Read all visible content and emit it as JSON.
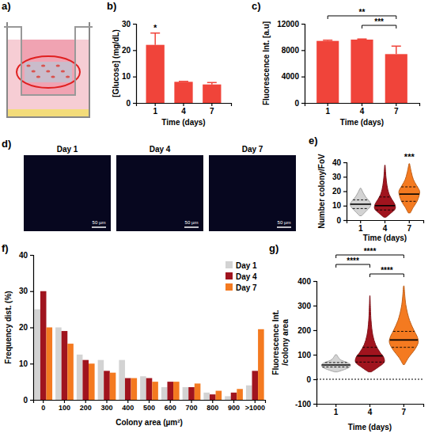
{
  "chart_data": [
    {
      "type": "schematic",
      "panel": "a)"
    },
    {
      "type": "bar",
      "panel": "b)",
      "categories": [
        "1",
        "4",
        "7"
      ],
      "values": [
        22,
        8,
        7
      ],
      "errors": [
        4.5,
        0.2,
        0.7
      ],
      "color": "#f0443a",
      "ylim": [
        0,
        30
      ],
      "yticks": [
        0,
        10,
        20,
        30
      ],
      "x_label": "Time (days)",
      "y_label": "[Glucose] (mg/dL)",
      "annotations": [
        {
          "category": "1",
          "label": "*"
        }
      ]
    },
    {
      "type": "bar",
      "panel": "c)",
      "categories": [
        "1",
        "4",
        "7"
      ],
      "values": [
        9400,
        9600,
        7400
      ],
      "errors": [
        100,
        100,
        1200
      ],
      "color": "#f0443a",
      "ylim": [
        0,
        12000
      ],
      "yticks": [
        0,
        4000,
        8000,
        12000
      ],
      "x_label": "Time (days)",
      "y_label": "Fluorescence Int. [a.u]",
      "comparisons": [
        {
          "from": "1",
          "to": "7",
          "label": "**"
        },
        {
          "from": "4",
          "to": "7",
          "label": "***"
        }
      ]
    },
    {
      "type": "image",
      "panel": "d)",
      "titles": [
        "Day 1",
        "Day 4",
        "Day 7"
      ],
      "scale_bar": "50 µm"
    },
    {
      "type": "violin",
      "panel": "e)",
      "categories": [
        "1",
        "4",
        "7"
      ],
      "colors": [
        "#d3d3d3",
        "#a0141e",
        "#f47a20"
      ],
      "violins": [
        {
          "y": [
            3,
            6,
            9,
            11,
            13,
            16,
            19,
            22
          ],
          "density": [
            0.1,
            0.5,
            0.9,
            1,
            0.85,
            0.5,
            0.25,
            0.05
          ],
          "quartiles": [
            8,
            11,
            14
          ]
        },
        {
          "y": [
            2,
            5,
            8,
            11,
            14,
            18,
            24,
            30,
            38
          ],
          "density": [
            0.1,
            0.6,
            1,
            0.95,
            0.7,
            0.4,
            0.2,
            0.1,
            0.02
          ],
          "quartiles": [
            7,
            10,
            16
          ]
        },
        {
          "y": [
            5,
            9,
            13,
            17,
            20,
            24,
            28,
            33,
            39
          ],
          "density": [
            0.1,
            0.4,
            0.75,
            0.95,
            1,
            0.7,
            0.4,
            0.2,
            0.03
          ],
          "quartiles": [
            13,
            18,
            23
          ]
        }
      ],
      "ylim": [
        0,
        40
      ],
      "yticks": [
        0,
        10,
        20,
        30,
        40
      ],
      "x_label": "Time (days)",
      "y_label": "Number colony/FoV",
      "annotations": [
        {
          "category": "7",
          "label": "***"
        }
      ]
    },
    {
      "type": "bar",
      "panel": "f)",
      "categories": [
        "0",
        "100",
        "200",
        "300",
        "400",
        "500",
        "600",
        "700",
        "800",
        "900",
        ">1000"
      ],
      "series": [
        {
          "name": "Day 1",
          "color": "#d3d3d3",
          "values": [
            25,
            20,
            12.5,
            11,
            11,
            6.5,
            3.5,
            3.5,
            2,
            1,
            4
          ]
        },
        {
          "name": "Day 4",
          "color": "#a0141e",
          "values": [
            30,
            19,
            11,
            8,
            6,
            6,
            5,
            3.5,
            1.5,
            2,
            8
          ]
        },
        {
          "name": "Day 7",
          "color": "#f47a20",
          "values": [
            20,
            15.5,
            10,
            7.5,
            6,
            5,
            5,
            4.5,
            2.5,
            3,
            19.5
          ]
        }
      ],
      "ylim": [
        0,
        40
      ],
      "yticks": [
        0,
        10,
        20,
        30,
        40
      ],
      "x_label": "Colony area (µm²)",
      "y_label": "Frequency dist. (%)",
      "legend": "top-right"
    },
    {
      "type": "violin",
      "panel": "g)",
      "categories": [
        "1",
        "4",
        "7"
      ],
      "colors": [
        "#d3d3d3",
        "#a0141e",
        "#f47a20"
      ],
      "violins": [
        {
          "y": [
            30,
            40,
            50,
            60,
            70,
            80,
            100
          ],
          "density": [
            0.1,
            0.6,
            0.95,
            1,
            0.7,
            0.3,
            0.05
          ],
          "quartiles": [
            50,
            58,
            68
          ]
        },
        {
          "y": [
            30,
            50,
            70,
            90,
            110,
            140,
            180,
            240,
            340
          ],
          "density": [
            0.1,
            0.6,
            1,
            0.95,
            0.7,
            0.4,
            0.2,
            0.08,
            0.01
          ],
          "quartiles": [
            70,
            95,
            130
          ]
        },
        {
          "y": [
            60,
            90,
            120,
            150,
            170,
            200,
            240,
            300,
            380
          ],
          "density": [
            0.05,
            0.35,
            0.75,
            1,
            0.95,
            0.7,
            0.4,
            0.15,
            0.02
          ],
          "quartiles": [
            130,
            160,
            195
          ]
        }
      ],
      "ylim": [
        -100,
        400
      ],
      "yticks": [
        -100,
        0,
        100,
        200,
        300,
        400
      ],
      "reference_line": 0,
      "x_label": "Time (days)",
      "y_label": "Fluorescence Int./colony area",
      "comparisons": [
        {
          "from": "1",
          "to": "7",
          "label": "****"
        },
        {
          "from": "1",
          "to": "4",
          "label": "****"
        },
        {
          "from": "4",
          "to": "7",
          "label": "****"
        }
      ]
    }
  ]
}
